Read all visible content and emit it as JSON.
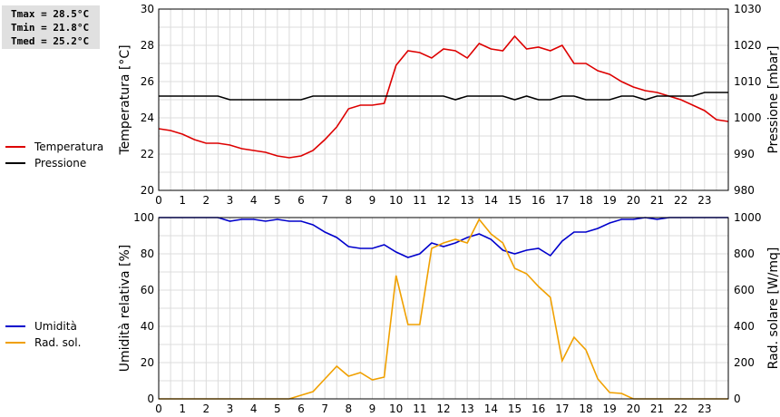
{
  "stats": {
    "tmax": "Tmax = 28.5°C",
    "tmin": "Tmin = 21.8°C",
    "tmed": "Tmed = 25.2°C"
  },
  "legend_top": [
    {
      "label": "Temperatura",
      "color": "#dd0000"
    },
    {
      "label": "Pressione",
      "color": "#000000"
    }
  ],
  "legend_bottom": [
    {
      "label": "Umidità",
      "color": "#0000cc"
    },
    {
      "label": "Rad. sol.",
      "color": "#f0a000"
    }
  ],
  "chart_data": [
    {
      "type": "line",
      "xlabel": "",
      "xlim": [
        0,
        24
      ],
      "x_ticks": [
        "0",
        "1",
        "2",
        "3",
        "4",
        "5",
        "6",
        "7",
        "8",
        "9",
        "10",
        "11",
        "12",
        "13",
        "14",
        "15",
        "16",
        "17",
        "18",
        "19",
        "20",
        "21",
        "22",
        "23"
      ],
      "ylabel_left": "Temperatura [°C]",
      "ylim_left": [
        20,
        30
      ],
      "y_ticks_left": [
        "20",
        "22",
        "24",
        "26",
        "28",
        "30"
      ],
      "ylabel_right": "Pressione [mbar]",
      "ylim_right": [
        980,
        1030
      ],
      "y_ticks_right": [
        "980",
        "990",
        "1000",
        "1010",
        "1020",
        "1030"
      ],
      "grid": true,
      "series": [
        {
          "name": "Temperatura",
          "axis": "left",
          "color": "#dd0000",
          "points": [
            [
              0,
              23.4
            ],
            [
              0.5,
              23.3
            ],
            [
              1,
              23.1
            ],
            [
              1.5,
              22.8
            ],
            [
              2,
              22.6
            ],
            [
              2.5,
              22.6
            ],
            [
              3,
              22.5
            ],
            [
              3.5,
              22.3
            ],
            [
              4,
              22.2
            ],
            [
              4.5,
              22.1
            ],
            [
              5,
              21.9
            ],
            [
              5.5,
              21.8
            ],
            [
              6,
              21.9
            ],
            [
              6.5,
              22.2
            ],
            [
              7,
              22.8
            ],
            [
              7.5,
              23.5
            ],
            [
              8,
              24.5
            ],
            [
              8.5,
              24.7
            ],
            [
              9,
              24.7
            ],
            [
              9.5,
              24.8
            ],
            [
              10,
              26.9
            ],
            [
              10.5,
              27.7
            ],
            [
              11,
              27.6
            ],
            [
              11.5,
              27.3
            ],
            [
              12,
              27.8
            ],
            [
              12.5,
              27.7
            ],
            [
              13,
              27.3
            ],
            [
              13.5,
              28.1
            ],
            [
              14,
              27.8
            ],
            [
              14.5,
              27.7
            ],
            [
              15,
              28.5
            ],
            [
              15.5,
              27.8
            ],
            [
              16,
              27.9
            ],
            [
              16.5,
              27.7
            ],
            [
              17,
              28.0
            ],
            [
              17.5,
              27.0
            ],
            [
              18,
              27.0
            ],
            [
              18.5,
              26.6
            ],
            [
              19,
              26.4
            ],
            [
              19.5,
              26.0
            ],
            [
              20,
              25.7
            ],
            [
              20.5,
              25.5
            ],
            [
              21,
              25.4
            ],
            [
              21.5,
              25.2
            ],
            [
              22,
              25.0
            ],
            [
              22.5,
              24.7
            ],
            [
              23,
              24.4
            ],
            [
              23.5,
              23.9
            ],
            [
              24,
              23.8
            ]
          ]
        },
        {
          "name": "Pressione",
          "axis": "right",
          "color": "#000000",
          "points": [
            [
              0,
              1006
            ],
            [
              0.5,
              1006
            ],
            [
              1,
              1006
            ],
            [
              1.5,
              1006
            ],
            [
              2,
              1006
            ],
            [
              2.5,
              1006
            ],
            [
              3,
              1005
            ],
            [
              3.5,
              1005
            ],
            [
              4,
              1005
            ],
            [
              4.5,
              1005
            ],
            [
              5,
              1005
            ],
            [
              5.5,
              1005
            ],
            [
              6,
              1005
            ],
            [
              6.5,
              1006
            ],
            [
              7,
              1006
            ],
            [
              7.5,
              1006
            ],
            [
              8,
              1006
            ],
            [
              8.5,
              1006
            ],
            [
              9,
              1006
            ],
            [
              9.5,
              1006
            ],
            [
              10,
              1006
            ],
            [
              10.5,
              1006
            ],
            [
              11,
              1006
            ],
            [
              11.5,
              1006
            ],
            [
              12,
              1006
            ],
            [
              12.5,
              1005
            ],
            [
              13,
              1006
            ],
            [
              13.5,
              1006
            ],
            [
              14,
              1006
            ],
            [
              14.5,
              1006
            ],
            [
              15,
              1005
            ],
            [
              15.5,
              1006
            ],
            [
              16,
              1005
            ],
            [
              16.5,
              1005
            ],
            [
              17,
              1006
            ],
            [
              17.5,
              1006
            ],
            [
              18,
              1005
            ],
            [
              18.5,
              1005
            ],
            [
              19,
              1005
            ],
            [
              19.5,
              1006
            ],
            [
              20,
              1006
            ],
            [
              20.5,
              1005
            ],
            [
              21,
              1006
            ],
            [
              21.5,
              1006
            ],
            [
              22,
              1006
            ],
            [
              22.5,
              1006
            ],
            [
              23,
              1007
            ],
            [
              23.5,
              1007
            ],
            [
              24,
              1007
            ]
          ]
        }
      ]
    },
    {
      "type": "line",
      "xlabel": "",
      "xlim": [
        0,
        24
      ],
      "x_ticks": [
        "0",
        "1",
        "2",
        "3",
        "4",
        "5",
        "6",
        "7",
        "8",
        "9",
        "10",
        "11",
        "12",
        "13",
        "14",
        "15",
        "16",
        "17",
        "18",
        "19",
        "20",
        "21",
        "22",
        "23"
      ],
      "ylabel_left": "Umidità relativa [%]",
      "ylim_left": [
        0,
        100
      ],
      "y_ticks_left": [
        "0",
        "20",
        "40",
        "60",
        "80",
        "100"
      ],
      "ylabel_right": "Rad. solare [W/mq]",
      "ylim_right": [
        0,
        1000
      ],
      "y_ticks_right": [
        "0",
        "200",
        "400",
        "600",
        "800",
        "1000"
      ],
      "grid": true,
      "series": [
        {
          "name": "Umidità",
          "axis": "left",
          "color": "#0000cc",
          "points": [
            [
              0,
              100
            ],
            [
              0.5,
              100
            ],
            [
              1,
              100
            ],
            [
              1.5,
              100
            ],
            [
              2,
              100
            ],
            [
              2.5,
              100
            ],
            [
              3,
              98
            ],
            [
              3.5,
              99
            ],
            [
              4,
              99
            ],
            [
              4.5,
              98
            ],
            [
              5,
              99
            ],
            [
              5.5,
              98
            ],
            [
              6,
              98
            ],
            [
              6.5,
              96
            ],
            [
              7,
              92
            ],
            [
              7.5,
              89
            ],
            [
              8,
              84
            ],
            [
              8.5,
              83
            ],
            [
              9,
              83
            ],
            [
              9.5,
              85
            ],
            [
              10,
              81
            ],
            [
              10.5,
              78
            ],
            [
              11,
              80
            ],
            [
              11.5,
              86
            ],
            [
              12,
              84
            ],
            [
              12.5,
              86
            ],
            [
              13,
              89
            ],
            [
              13.5,
              91
            ],
            [
              14,
              88
            ],
            [
              14.5,
              82
            ],
            [
              15,
              80
            ],
            [
              15.5,
              82
            ],
            [
              16,
              83
            ],
            [
              16.5,
              79
            ],
            [
              17,
              87
            ],
            [
              17.5,
              92
            ],
            [
              18,
              92
            ],
            [
              18.5,
              94
            ],
            [
              19,
              97
            ],
            [
              19.5,
              99
            ],
            [
              20,
              99
            ],
            [
              20.5,
              100
            ],
            [
              21,
              99
            ],
            [
              21.5,
              100
            ],
            [
              22,
              100
            ],
            [
              22.5,
              100
            ],
            [
              23,
              100
            ],
            [
              23.5,
              100
            ],
            [
              24,
              100
            ]
          ]
        },
        {
          "name": "Rad. sol.",
          "axis": "right",
          "color": "#f0a000",
          "points": [
            [
              0,
              0
            ],
            [
              0.5,
              0
            ],
            [
              1,
              0
            ],
            [
              1.5,
              0
            ],
            [
              2,
              0
            ],
            [
              2.5,
              0
            ],
            [
              3,
              0
            ],
            [
              3.5,
              0
            ],
            [
              4,
              0
            ],
            [
              4.5,
              0
            ],
            [
              5,
              0
            ],
            [
              5.5,
              0
            ],
            [
              6,
              20
            ],
            [
              6.5,
              40
            ],
            [
              7,
              110
            ],
            [
              7.5,
              180
            ],
            [
              8,
              125
            ],
            [
              8.5,
              145
            ],
            [
              9,
              105
            ],
            [
              9.5,
              120
            ],
            [
              10,
              680
            ],
            [
              10.5,
              410
            ],
            [
              11,
              410
            ],
            [
              11.5,
              830
            ],
            [
              12,
              860
            ],
            [
              12.5,
              880
            ],
            [
              13,
              860
            ],
            [
              13.5,
              990
            ],
            [
              14,
              910
            ],
            [
              14.5,
              860
            ],
            [
              15,
              720
            ],
            [
              15.5,
              690
            ],
            [
              16,
              620
            ],
            [
              16.5,
              560
            ],
            [
              17,
              210
            ],
            [
              17.5,
              340
            ],
            [
              18,
              270
            ],
            [
              18.5,
              110
            ],
            [
              19,
              35
            ],
            [
              19.5,
              30
            ],
            [
              20,
              0
            ],
            [
              20.5,
              0
            ],
            [
              21,
              0
            ],
            [
              21.5,
              0
            ],
            [
              22,
              0
            ],
            [
              22.5,
              0
            ],
            [
              23,
              0
            ],
            [
              23.5,
              0
            ],
            [
              24,
              0
            ]
          ]
        }
      ]
    }
  ]
}
